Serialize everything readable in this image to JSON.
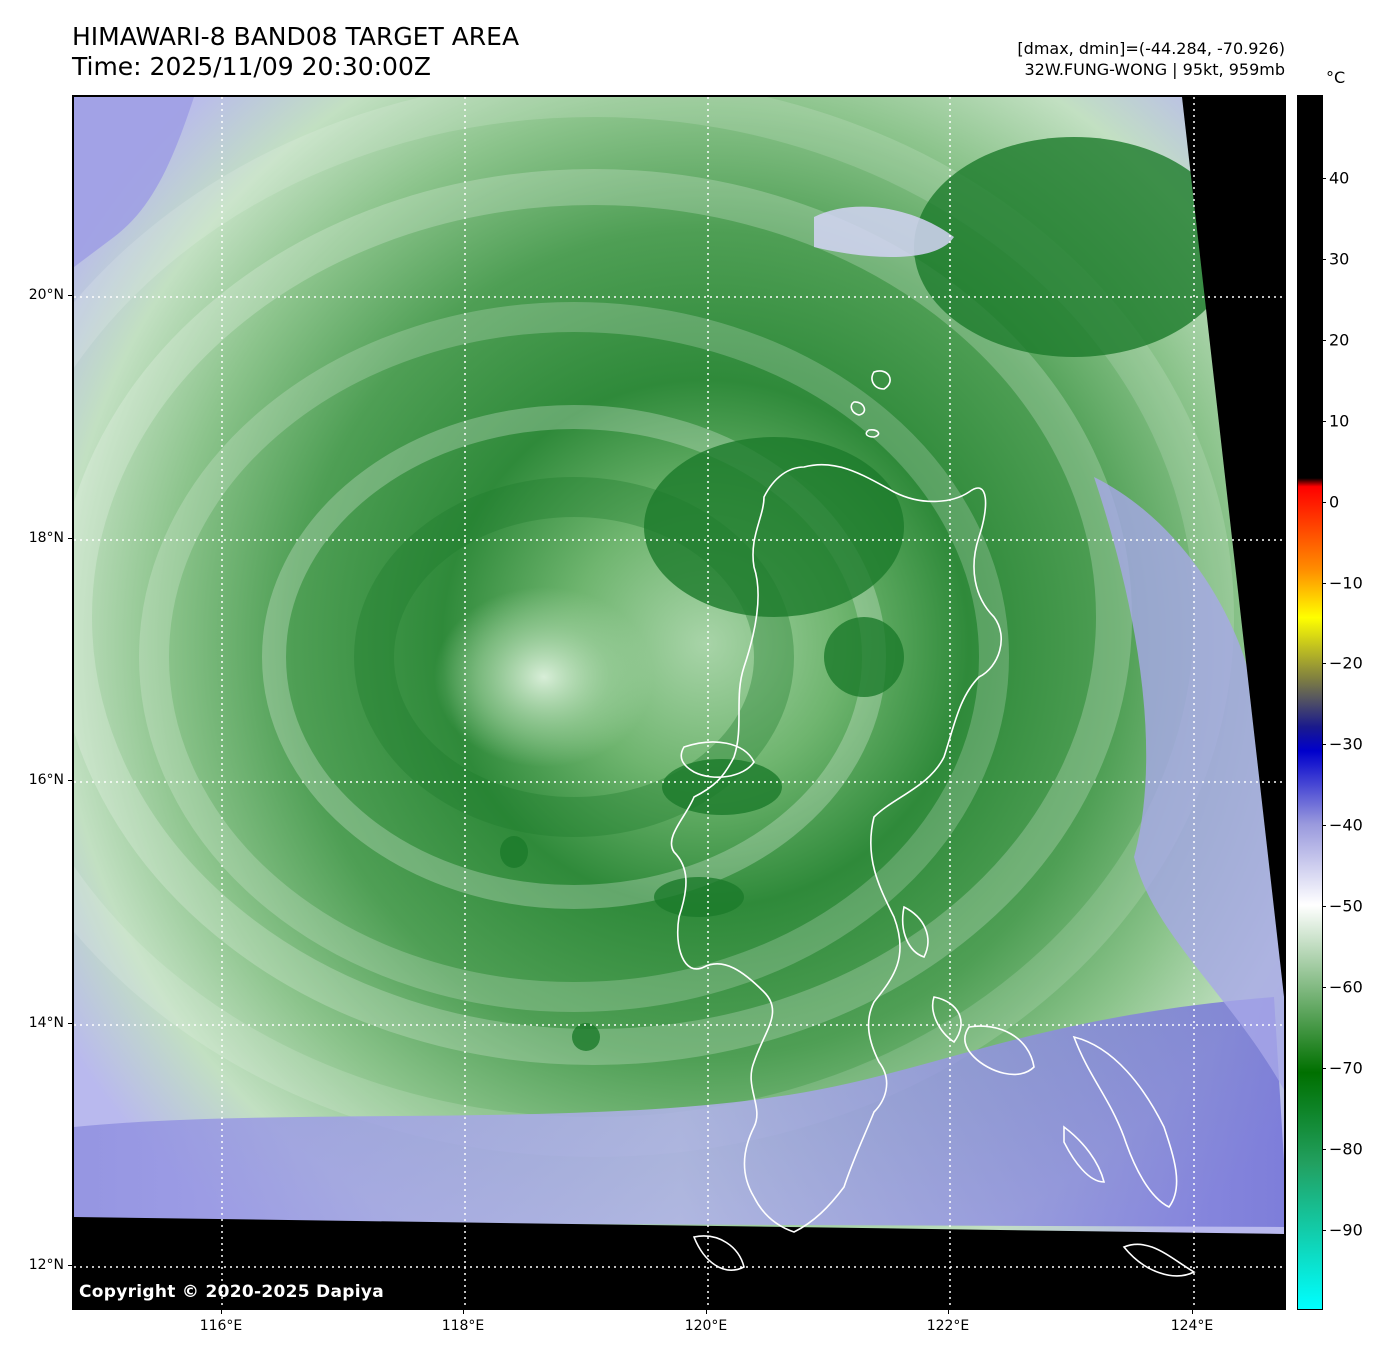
{
  "header": {
    "title_line1": "HIMAWARI-8 BAND08 TARGET AREA",
    "title_line2": "Time: 2025/11/09 20:30:00Z",
    "range_text": "[dmax, dmin]=(-44.284, -70.926)",
    "storm_text": "32W.FUNG-WONG | 95kt, 959mb"
  },
  "map": {
    "copyright": "Copyright © 2020-2025 Dapiya",
    "lat_labels": [
      "20°N",
      "18°N",
      "16°N",
      "14°N",
      "12°N"
    ],
    "lon_labels": [
      "116°E",
      "118°E",
      "120°E",
      "122°E",
      "124°E"
    ],
    "colors": {
      "no_data": "#000000",
      "cold_cloud": "#1c7a2a",
      "cloud_mid": "#7fbf7f",
      "cloud_warm": "#e8f3e8",
      "clear_air": "#7d7dd8",
      "coastline": "#ffffff"
    }
  },
  "colorbar": {
    "unit": "°C",
    "labels": [
      "40",
      "30",
      "20",
      "10",
      "0",
      "−10",
      "−20",
      "−30",
      "−40",
      "−50",
      "−60",
      "−70",
      "−80",
      "−90"
    ],
    "stops": [
      "#000000",
      "#000000",
      "#ff0000",
      "#ff8c00",
      "#ffff00",
      "#808040",
      "#1a1a8c",
      "#0000cc",
      "#9999dd",
      "#ffffff",
      "#66aa66",
      "#007000",
      "#22a060",
      "#00ffff"
    ]
  }
}
